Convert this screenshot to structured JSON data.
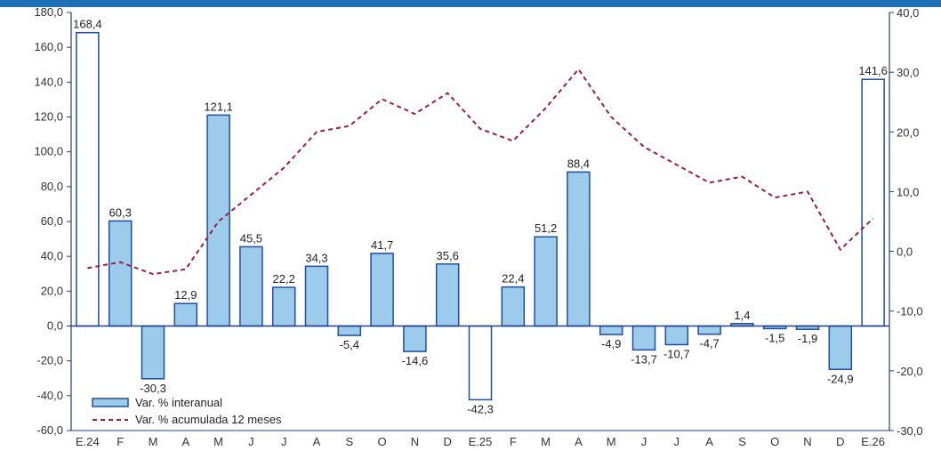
{
  "chart_data": {
    "type": "bar",
    "categories": [
      "E.24",
      "F",
      "M",
      "A",
      "M",
      "J",
      "J",
      "A",
      "S",
      "O",
      "N",
      "D",
      "E.25",
      "F",
      "M",
      "A",
      "M",
      "J",
      "J",
      "A",
      "S",
      "O",
      "N",
      "D",
      "E.26"
    ],
    "series": [
      {
        "name": "Var. % interanual",
        "type": "bar",
        "axis": "left",
        "values": [
          168.4,
          60.3,
          -30.3,
          12.9,
          121.1,
          45.5,
          22.2,
          34.3,
          -5.4,
          41.7,
          -14.6,
          35.6,
          -42.3,
          22.4,
          51.2,
          88.4,
          -4.9,
          -13.7,
          -10.7,
          -4.7,
          1.4,
          -1.5,
          -1.9,
          -24.9,
          141.6
        ],
        "labels": [
          "168,4",
          "60,3",
          "-30,3",
          "12,9",
          "121,1",
          "45,5",
          "22,2",
          "34,3",
          "-5,4",
          "41,7",
          "-14,6",
          "35,6",
          "-42,3",
          "22,4",
          "51,2",
          "88,4",
          "-4,9",
          "-13,7",
          "-10,7",
          "-4,7",
          "1,4",
          "-1,5",
          "-1,9",
          "-24,9",
          "141,6"
        ],
        "white_bars": [
          0,
          12,
          24
        ]
      },
      {
        "name": "Var. % acumulada 12 meses",
        "type": "line",
        "style": "dashed",
        "axis": "right",
        "values": [
          -2.8,
          -1.8,
          -3.8,
          -3.0,
          5.0,
          9.5,
          14.0,
          20.0,
          21.0,
          25.5,
          23.0,
          26.5,
          20.5,
          18.5,
          24.0,
          30.5,
          22.5,
          17.5,
          14.5,
          11.5,
          12.5,
          9.0,
          10.0,
          0.3,
          5.5
        ]
      }
    ],
    "yticks_left": [
      "180,0",
      "160,0",
      "140,0",
      "120,0",
      "100,0",
      "80,0",
      "60,0",
      "40,0",
      "20,0",
      "0,0",
      "-20,0",
      "-40,0",
      "-60,0"
    ],
    "yticks_right": [
      "40,0",
      "30,0",
      "20,0",
      "10,0",
      "0,0",
      "-10,0",
      "-20,0",
      "-30,0"
    ],
    "ylim_left": [
      -60,
      180
    ],
    "ylim_right": [
      -30,
      40
    ],
    "grid": false,
    "legend": {
      "placement": "bottom-left",
      "items": [
        "Var. % interanual",
        "Var. % acumulada 12 meses"
      ]
    },
    "colors": {
      "bar_fill": "#9dcbeb",
      "bar_stroke": "#1f4e9a",
      "line": "#a01d3d",
      "axis": "#1f3f8f",
      "header": "#1f6fb4"
    }
  }
}
